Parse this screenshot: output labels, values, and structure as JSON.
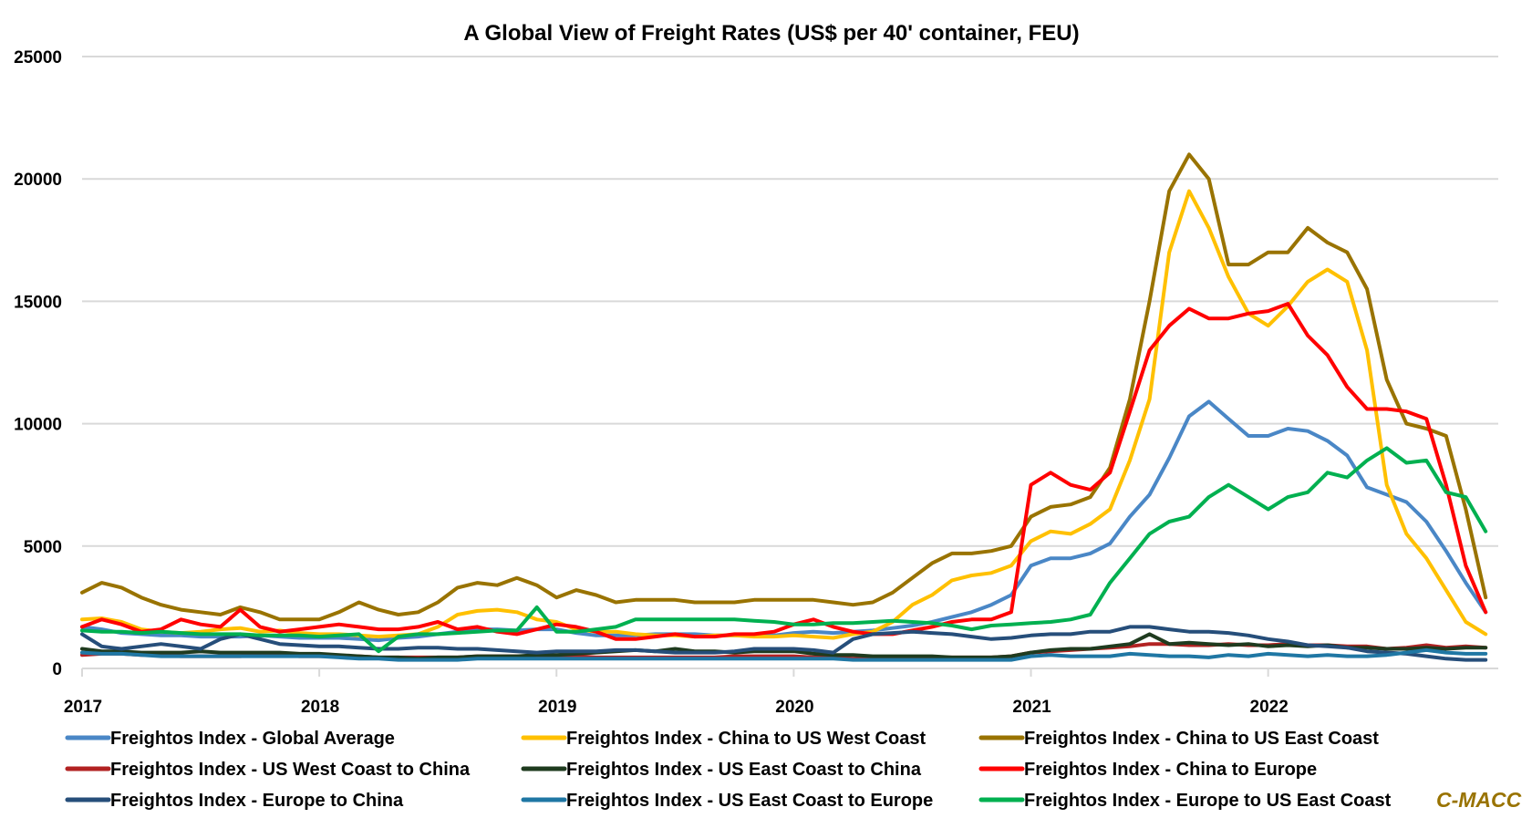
{
  "chart_data": {
    "type": "line",
    "title": "A Global View of Freight Rates (US$ per 40' container, FEU)",
    "xlabel": "",
    "ylabel": "",
    "ylim": [
      0,
      25000
    ],
    "xlim": [
      2017.0,
      2022.97
    ],
    "y_ticks": [
      "0",
      "5000",
      "10000",
      "15000",
      "20000",
      "25000"
    ],
    "y_tick_values": [
      0,
      5000,
      10000,
      15000,
      20000,
      25000
    ],
    "x_ticks": [
      "2017",
      "2018",
      "2019",
      "2020",
      "2021",
      "2022"
    ],
    "x_tick_values": [
      2017,
      2018,
      2019,
      2020,
      2021,
      2022
    ],
    "grid": "horizontal",
    "legend_position": "bottom",
    "x": [
      2017.0,
      2017.083,
      2017.167,
      2017.25,
      2017.333,
      2017.417,
      2017.5,
      2017.583,
      2017.667,
      2017.75,
      2017.833,
      2017.917,
      2018.0,
      2018.083,
      2018.167,
      2018.25,
      2018.333,
      2018.417,
      2018.5,
      2018.583,
      2018.667,
      2018.75,
      2018.833,
      2018.917,
      2019.0,
      2019.083,
      2019.167,
      2019.25,
      2019.333,
      2019.417,
      2019.5,
      2019.583,
      2019.667,
      2019.75,
      2019.833,
      2019.917,
      2020.0,
      2020.083,
      2020.167,
      2020.25,
      2020.333,
      2020.417,
      2020.5,
      2020.583,
      2020.667,
      2020.75,
      2020.833,
      2020.917,
      2021.0,
      2021.083,
      2021.167,
      2021.25,
      2021.333,
      2021.417,
      2021.5,
      2021.583,
      2021.667,
      2021.75,
      2021.833,
      2021.917,
      2022.0,
      2022.083,
      2022.167,
      2022.25,
      2022.333,
      2022.417,
      2022.5,
      2022.583,
      2022.667,
      2022.75,
      2022.833,
      2022.917
    ],
    "series": [
      {
        "name": "Freightos Index - Global Average",
        "color": "#4a87c6",
        "values": [
          1700,
          1600,
          1450,
          1400,
          1350,
          1350,
          1300,
          1300,
          1300,
          1350,
          1300,
          1250,
          1250,
          1250,
          1200,
          1150,
          1250,
          1300,
          1400,
          1500,
          1600,
          1600,
          1550,
          1600,
          1600,
          1450,
          1350,
          1350,
          1350,
          1400,
          1400,
          1400,
          1350,
          1350,
          1350,
          1350,
          1450,
          1500,
          1450,
          1500,
          1550,
          1650,
          1750,
          1900,
          2100,
          2300,
          2600,
          3000,
          4200,
          4500,
          4500,
          4700,
          5100,
          6200,
          7100,
          8600,
          10300,
          10900,
          10200,
          9500,
          9500,
          9800,
          9700,
          9300,
          8700,
          7400,
          7100,
          6800,
          6000,
          4800,
          3500,
          2300
        ]
      },
      {
        "name": "Freightos Index - China to US West Coast",
        "color": "#ffc000",
        "values": [
          2000,
          2050,
          1900,
          1600,
          1500,
          1450,
          1500,
          1600,
          1650,
          1500,
          1550,
          1450,
          1400,
          1400,
          1350,
          1300,
          1350,
          1400,
          1700,
          2200,
          2350,
          2400,
          2300,
          2000,
          1900,
          1600,
          1500,
          1500,
          1400,
          1350,
          1350,
          1300,
          1350,
          1350,
          1300,
          1300,
          1350,
          1300,
          1250,
          1400,
          1500,
          1900,
          2600,
          3000,
          3600,
          3800,
          3900,
          4200,
          5200,
          5600,
          5500,
          5900,
          6500,
          8500,
          11000,
          17000,
          19500,
          18000,
          16000,
          14500,
          14000,
          14800,
          15800,
          16300,
          15800,
          13000,
          7500,
          5500,
          4500,
          3200,
          1900,
          1400
        ]
      },
      {
        "name": "Freightos Index - China to US East Coast",
        "color": "#997300",
        "values": [
          3100,
          3500,
          3300,
          2900,
          2600,
          2400,
          2300,
          2200,
          2500,
          2300,
          2000,
          2000,
          2000,
          2300,
          2700,
          2400,
          2200,
          2300,
          2700,
          3300,
          3500,
          3400,
          3700,
          3400,
          2900,
          3200,
          3000,
          2700,
          2800,
          2800,
          2800,
          2700,
          2700,
          2700,
          2800,
          2800,
          2800,
          2800,
          2700,
          2600,
          2700,
          3100,
          3700,
          4300,
          4700,
          4700,
          4800,
          5000,
          6200,
          6600,
          6700,
          7000,
          8200,
          11000,
          15000,
          19500,
          21000,
          20000,
          16500,
          16500,
          17000,
          17000,
          18000,
          17400,
          17000,
          15500,
          11800,
          10000,
          9800,
          9500,
          6500,
          2900
        ]
      },
      {
        "name": "Freightos Index - US West Coast to China",
        "color": "#b22222",
        "values": [
          550,
          600,
          600,
          550,
          550,
          500,
          500,
          500,
          500,
          550,
          550,
          500,
          500,
          500,
          500,
          450,
          450,
          450,
          450,
          450,
          500,
          500,
          500,
          500,
          500,
          500,
          450,
          450,
          450,
          450,
          450,
          450,
          450,
          500,
          500,
          500,
          500,
          450,
          450,
          400,
          400,
          400,
          400,
          450,
          450,
          450,
          450,
          500,
          650,
          700,
          750,
          800,
          850,
          900,
          1000,
          1000,
          950,
          950,
          1000,
          950,
          950,
          1000,
          950,
          950,
          900,
          900,
          800,
          850,
          950,
          850,
          900,
          850
        ]
      },
      {
        "name": "Freightos Index - US East Coast to China",
        "color": "#1f3b1f",
        "values": [
          800,
          700,
          700,
          650,
          650,
          650,
          700,
          650,
          650,
          650,
          650,
          600,
          600,
          550,
          500,
          450,
          450,
          400,
          450,
          450,
          500,
          500,
          500,
          550,
          550,
          600,
          650,
          700,
          750,
          700,
          800,
          700,
          700,
          650,
          700,
          700,
          700,
          600,
          550,
          550,
          500,
          500,
          500,
          500,
          450,
          450,
          450,
          500,
          650,
          750,
          800,
          800,
          900,
          1000,
          1400,
          1000,
          1050,
          1000,
          950,
          1000,
          900,
          950,
          900,
          950,
          850,
          850,
          800,
          800,
          850,
          800,
          850,
          850
        ]
      },
      {
        "name": "Freightos Index - China to Europe",
        "color": "#ff0000",
        "values": [
          1700,
          2000,
          1800,
          1500,
          1600,
          2000,
          1800,
          1700,
          2400,
          1700,
          1500,
          1600,
          1700,
          1800,
          1700,
          1600,
          1600,
          1700,
          1900,
          1600,
          1700,
          1500,
          1400,
          1600,
          1800,
          1700,
          1500,
          1200,
          1200,
          1300,
          1400,
          1300,
          1300,
          1400,
          1400,
          1500,
          1800,
          2000,
          1700,
          1500,
          1400,
          1400,
          1550,
          1700,
          1900,
          2000,
          2000,
          2300,
          7500,
          8000,
          7500,
          7300,
          8000,
          10500,
          13000,
          14000,
          14700,
          14300,
          14300,
          14500,
          14600,
          14900,
          13600,
          12800,
          11500,
          10600,
          10600,
          10500,
          10200,
          7500,
          4200,
          2300
        ]
      },
      {
        "name": "Freightos Index - Europe to China",
        "color": "#264e7a",
        "values": [
          1400,
          900,
          800,
          900,
          1000,
          900,
          800,
          1200,
          1400,
          1200,
          1000,
          950,
          900,
          900,
          850,
          800,
          800,
          850,
          850,
          800,
          800,
          750,
          700,
          650,
          700,
          700,
          700,
          750,
          750,
          700,
          650,
          650,
          650,
          700,
          800,
          800,
          800,
          750,
          650,
          1200,
          1400,
          1450,
          1500,
          1450,
          1400,
          1300,
          1200,
          1250,
          1350,
          1400,
          1400,
          1500,
          1500,
          1700,
          1700,
          1600,
          1500,
          1500,
          1450,
          1350,
          1200,
          1100,
          950,
          900,
          850,
          700,
          650,
          600,
          500,
          400,
          350,
          350
        ]
      },
      {
        "name": "Freightos Index - US East Coast to Europe",
        "color": "#1f77a4",
        "values": [
          650,
          600,
          600,
          550,
          500,
          500,
          500,
          500,
          500,
          500,
          500,
          500,
          500,
          450,
          400,
          400,
          350,
          350,
          350,
          350,
          400,
          400,
          400,
          400,
          400,
          400,
          400,
          400,
          400,
          400,
          400,
          400,
          400,
          400,
          400,
          400,
          400,
          400,
          400,
          350,
          350,
          350,
          350,
          350,
          350,
          350,
          350,
          350,
          500,
          550,
          500,
          500,
          500,
          600,
          550,
          500,
          500,
          450,
          550,
          500,
          600,
          550,
          500,
          550,
          500,
          500,
          550,
          650,
          750,
          650,
          600,
          600
        ]
      },
      {
        "name": "Freightos Index - Europe to US East Coast",
        "color": "#00b050",
        "values": [
          1550,
          1500,
          1500,
          1450,
          1500,
          1450,
          1400,
          1400,
          1400,
          1350,
          1350,
          1350,
          1300,
          1350,
          1400,
          700,
          1300,
          1400,
          1400,
          1450,
          1500,
          1550,
          1550,
          2500,
          1500,
          1500,
          1600,
          1700,
          2000,
          2000,
          2000,
          2000,
          2000,
          2000,
          1950,
          1900,
          1800,
          1800,
          1850,
          1850,
          1900,
          1950,
          1900,
          1850,
          1750,
          1600,
          1750,
          1800,
          1850,
          1900,
          2000,
          2200,
          3500,
          4500,
          5500,
          6000,
          6200,
          7000,
          7500,
          7000,
          6500,
          7000,
          7200,
          8000,
          7800,
          8500,
          9000,
          8400,
          8500,
          7200,
          7000,
          5600
        ]
      }
    ]
  },
  "watermark": {
    "text": "C-MACC",
    "color": "#997300"
  }
}
